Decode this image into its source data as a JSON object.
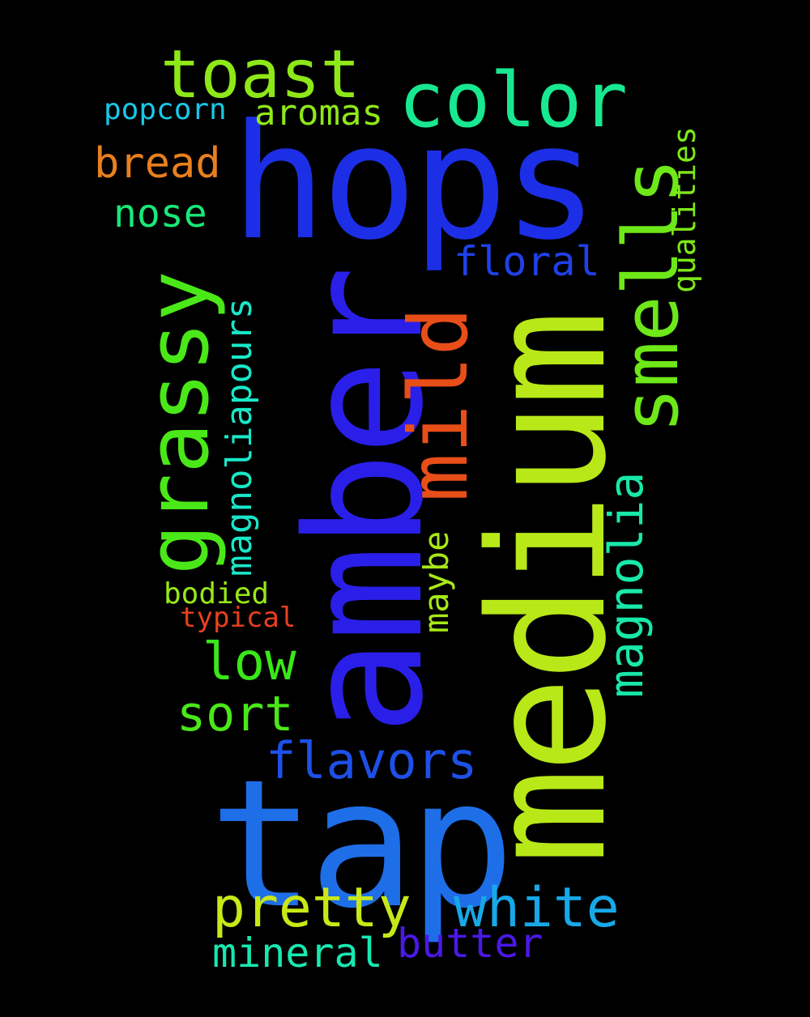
{
  "background": "#000000",
  "words": {
    "hops": {
      "text": "hops",
      "color": "#1c2fe6"
    },
    "amber": {
      "text": "amber",
      "color": "#2a1fe8"
    },
    "medium": {
      "text": "medium",
      "color": "#b8e818"
    },
    "tap": {
      "text": "tap",
      "color": "#1e6ee8"
    },
    "color": {
      "text": "color",
      "color": "#18e890"
    },
    "toast": {
      "text": "toast",
      "color": "#8ee818"
    },
    "grassy": {
      "text": "grassy",
      "color": "#4ae818"
    },
    "smells": {
      "text": "smells",
      "color": "#6ee818"
    },
    "mild": {
      "text": "mild",
      "color": "#e84e18"
    },
    "magnolia": {
      "text": "magnolia",
      "color": "#18e8a8"
    },
    "magnoliapours": {
      "text": "magnoliapours",
      "color": "#18e8c8"
    },
    "flavors": {
      "text": "flavors",
      "color": "#1e50e8"
    },
    "pretty": {
      "text": "pretty",
      "color": "#c8e818"
    },
    "white": {
      "text": "white",
      "color": "#18a8e8"
    },
    "butter": {
      "text": "butter",
      "color": "#4a18e8"
    },
    "mineral": {
      "text": "mineral",
      "color": "#18e8b0"
    },
    "sort": {
      "text": "sort",
      "color": "#4ae818"
    },
    "low": {
      "text": "low",
      "color": "#3ae818"
    },
    "bread": {
      "text": "bread",
      "color": "#e8801e"
    },
    "nose": {
      "text": "nose",
      "color": "#18e878"
    },
    "floral": {
      "text": "floral",
      "color": "#2040e8"
    },
    "aromas": {
      "text": "aromas",
      "color": "#8ee818"
    },
    "popcorn": {
      "text": "popcorn",
      "color": "#18c8e8"
    },
    "qualities": {
      "text": "qualities",
      "color": "#7ee818"
    },
    "maybe": {
      "text": "maybe",
      "color": "#a8e818"
    },
    "bodied": {
      "text": "bodied",
      "color": "#98e818"
    },
    "typical": {
      "text": "typical",
      "color": "#e8401e"
    }
  }
}
